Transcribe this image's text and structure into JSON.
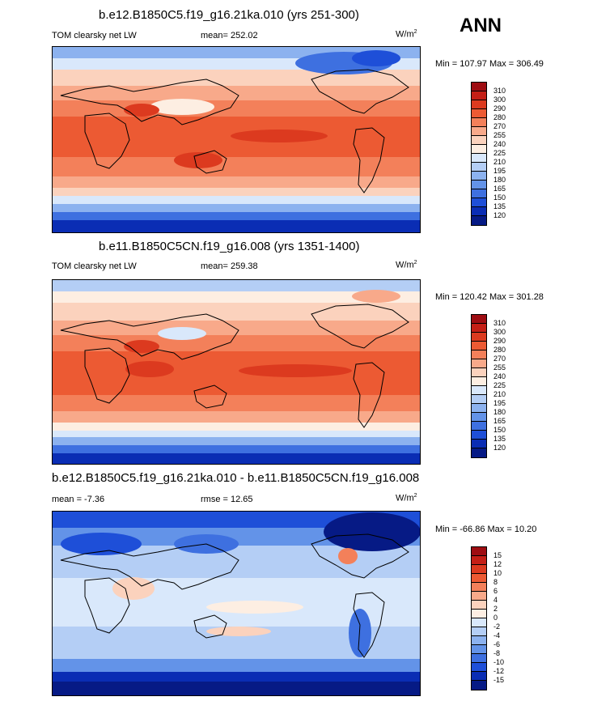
{
  "season": "ANN",
  "panels": [
    {
      "title": "b.e12.B1850C5.f19_g16.21ka.010 (yrs 251-300)",
      "left_label": "TOM clearsky net LW",
      "mean_label": "mean= 252.02",
      "units": "W/m",
      "units_exp": "2",
      "minmax": "Min = 107.97 Max = 306.49",
      "levels": [
        "310",
        "300",
        "290",
        "280",
        "270",
        "255",
        "240",
        "225",
        "210",
        "195",
        "180",
        "165",
        "150",
        "135",
        "120"
      ],
      "colors": [
        "#9e0d12",
        "#c41f16",
        "#dc3a1f",
        "#ec5a33",
        "#f3805a",
        "#f8a98a",
        "#fbd2bd",
        "#fdeee2",
        "#d9e8fb",
        "#b4cef5",
        "#8cb2ef",
        "#6393e8",
        "#3e70e0",
        "#1e4fd8",
        "#0a2db4",
        "#061a85"
      ]
    },
    {
      "title": "b.e11.B1850C5CN.f19_g16.008 (yrs 1351-1400)",
      "left_label": "TOM clearsky net LW",
      "mean_label": "mean= 259.38",
      "units": "W/m",
      "units_exp": "2",
      "minmax": "Min = 120.42 Max = 301.28",
      "levels": [
        "310",
        "300",
        "290",
        "280",
        "270",
        "255",
        "240",
        "225",
        "210",
        "195",
        "180",
        "165",
        "150",
        "135",
        "120"
      ],
      "colors": [
        "#9e0d12",
        "#c41f16",
        "#dc3a1f",
        "#ec5a33",
        "#f3805a",
        "#f8a98a",
        "#fbd2bd",
        "#fdeee2",
        "#d9e8fb",
        "#b4cef5",
        "#8cb2ef",
        "#6393e8",
        "#3e70e0",
        "#1e4fd8",
        "#0a2db4",
        "#061a85"
      ]
    },
    {
      "title": "b.e12.B1850C5.f19_g16.21ka.010 - b.e11.B1850C5CN.f19_g16.008",
      "left_label": "mean =  -7.36",
      "mean_label": "rmse =  12.65",
      "units": "W/m",
      "units_exp": "2",
      "minmax": "Min = -66.86 Max =  10.20",
      "levels": [
        "15",
        "12",
        "10",
        "8",
        "6",
        "4",
        "2",
        "0",
        "-2",
        "-4",
        "-6",
        "-8",
        "-10",
        "-12",
        "-15"
      ],
      "colors": [
        "#9e0d12",
        "#c41f16",
        "#dc3a1f",
        "#ec5a33",
        "#f3805a",
        "#f8a98a",
        "#fbd2bd",
        "#fdeee2",
        "#d9e8fb",
        "#b4cef5",
        "#8cb2ef",
        "#6393e8",
        "#3e70e0",
        "#1e4fd8",
        "#0a2db4",
        "#061a85"
      ]
    }
  ]
}
